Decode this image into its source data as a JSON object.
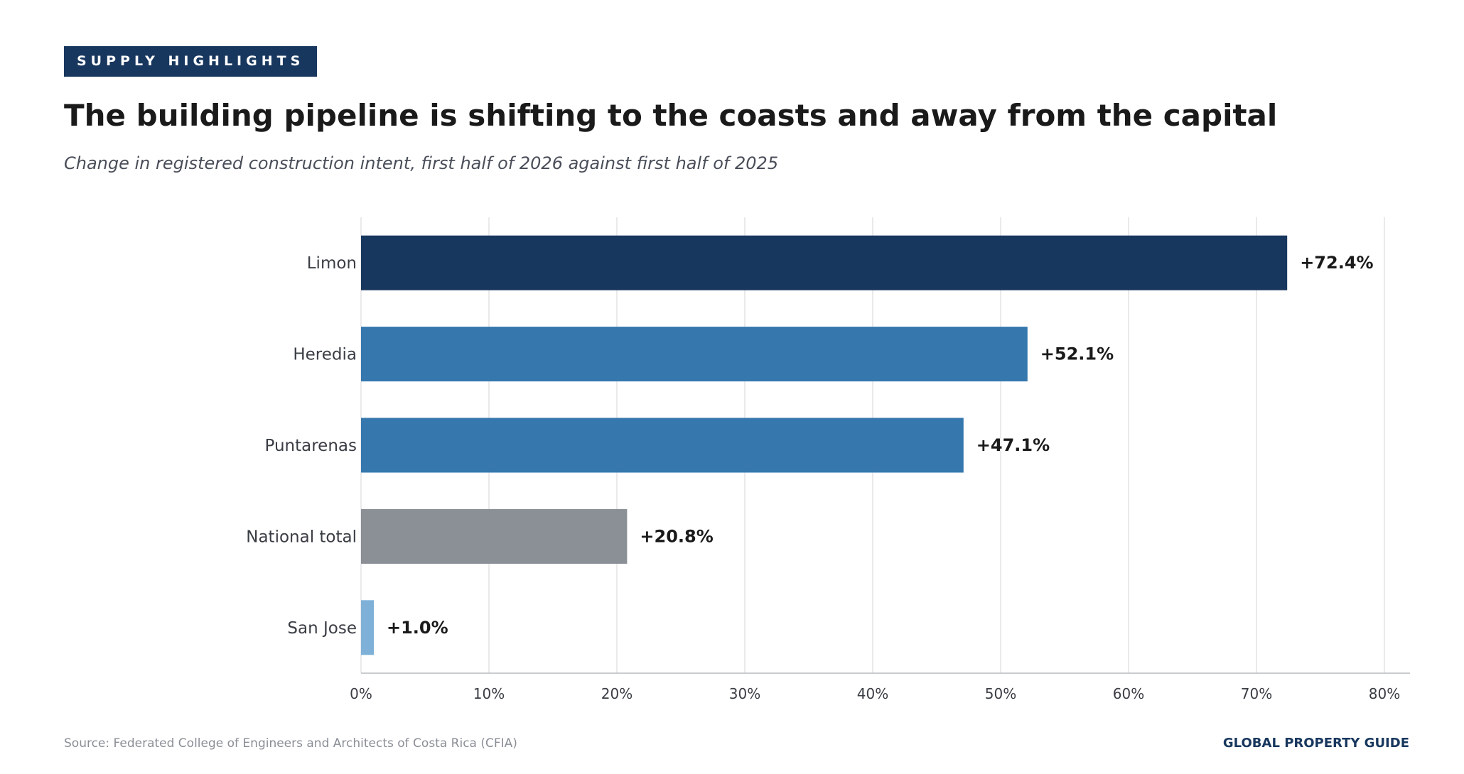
{
  "header": {
    "badge": "SUPPLY HIGHLIGHTS",
    "title": "The building pipeline is shifting to the coasts and away from the capital",
    "subtitle": "Change in registered construction intent, first half of 2026 against first half of 2025"
  },
  "footer": {
    "source": "Source: Federated College of Engineers and Architects of Costa Rica (CFIA)",
    "brand": "GLOBAL PROPERTY GUIDE"
  },
  "chart_data": {
    "type": "bar",
    "orientation": "horizontal",
    "categories": [
      "Limon",
      "Heredia",
      "Puntarenas",
      "National total",
      "San Jose"
    ],
    "values": [
      72.4,
      52.1,
      47.1,
      20.8,
      1.0
    ],
    "value_labels": [
      "+72.4%",
      "+52.1%",
      "+47.1%",
      "+20.8%",
      "+1.0%"
    ],
    "colors": [
      "#18375e",
      "#3678ae",
      "#3678ae",
      "#8b8f96",
      "#7fb1d8"
    ],
    "xlim": [
      0,
      82
    ],
    "xticks": [
      0,
      10,
      20,
      30,
      40,
      50,
      60,
      70,
      80
    ],
    "xtick_labels": [
      "0%",
      "10%",
      "20%",
      "30%",
      "40%",
      "50%",
      "60%",
      "70%",
      "80%"
    ],
    "grid": "vertical"
  }
}
